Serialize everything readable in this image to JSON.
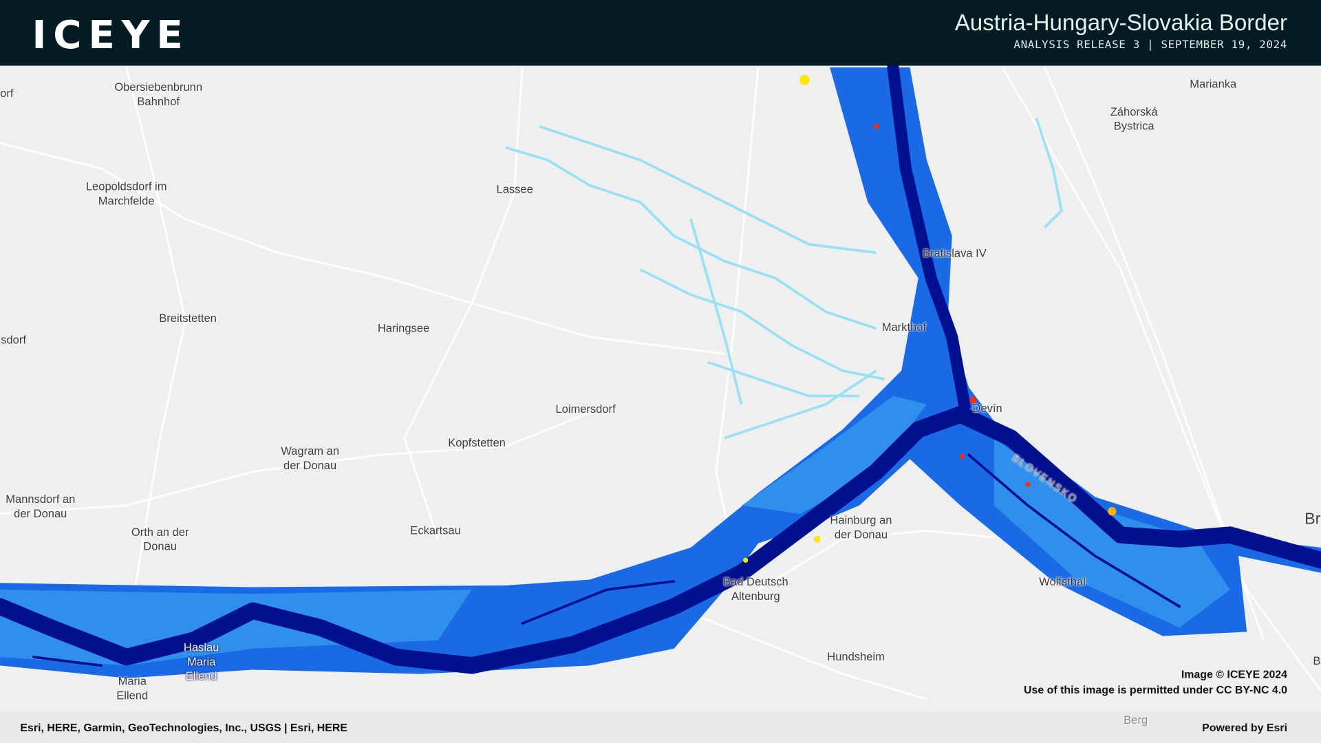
{
  "header": {
    "logo": "ICEYE",
    "title": "Austria-Hungary-Slovakia Border",
    "subtitle": "ANALYSIS RELEASE 3 | SEPTEMBER 19, 2024"
  },
  "map": {
    "water_colors": {
      "deep": "#00108e",
      "flood": "#0a5ae0",
      "shallow": "#3fb2f0",
      "light": "#8fe0f5",
      "alert_red": "#ff2a00",
      "alert_yellow": "#ffe600"
    },
    "labels": [
      "orf",
      "Obersiebenbrunn Bahnhof",
      "Marianka",
      "Záhorská Bystrica",
      "Leopoldsdorf im Marchfelde",
      "Lassee",
      "Bratislava IV",
      "Breitstetten",
      "Haringsee",
      "sdorf",
      "Markthof",
      "Devín",
      "Loimersdorf",
      "Kopfstetten",
      "Wagram an der Donau",
      "Mannsdorf an der Donau",
      "Orth an der Donau",
      "Eckartsau",
      "Hainburg an der Donau",
      "SLOVENSKO",
      "Bad Deutsch Altenburg",
      "Wolfsthal",
      "Br",
      "Haslau Maria Ellend",
      "Maria Ellend",
      "Hundsheim",
      "B",
      "Berg"
    ]
  },
  "attribution": {
    "image": "Image © ICEYE 2024",
    "license": "Use of this image is permitted under CC BY-NC 4.0"
  },
  "footer": {
    "sources": "Esri, HERE, Garmin, GeoTechnologies, Inc., USGS | Esri, HERE",
    "powered": "Powered by Esri"
  }
}
